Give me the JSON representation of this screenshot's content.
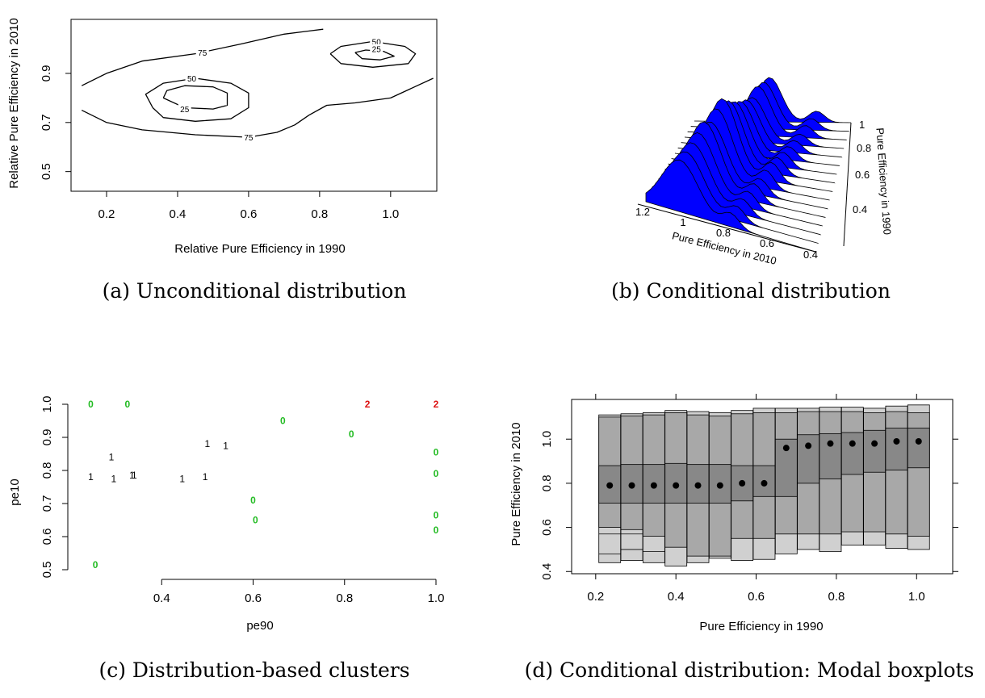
{
  "captions": {
    "a": "(a) Unconditional distribution",
    "b": "(b) Conditional distribution",
    "c": "(c) Distribution-based clusters",
    "d": "(d) Conditional distribution: Modal boxplots"
  },
  "chart_data": [
    {
      "id": "a",
      "type": "contour",
      "xlabel": "Relative Pure Efficiency in 1990",
      "ylabel": "Relative Pure Efficiency in 2010",
      "xticks": [
        0.2,
        0.4,
        0.6,
        0.8,
        1.0
      ],
      "xtick_labels": [
        "0.2",
        "0.4",
        "0.6",
        "0.8",
        "1.0"
      ],
      "yticks": [
        0.5,
        0.7,
        0.9
      ],
      "ytick_labels": [
        "0.5",
        "0.7",
        "0.9"
      ],
      "xlim": [
        0.1,
        1.13
      ],
      "ylim": [
        0.42,
        1.12
      ],
      "contour_levels": [
        {
          "label": "75",
          "lines": [
            [
              [
                0.13,
                0.85
              ],
              [
                0.2,
                0.9
              ],
              [
                0.3,
                0.95
              ],
              [
                0.45,
                0.98
              ],
              [
                0.58,
                1.02
              ],
              [
                0.7,
                1.06
              ],
              [
                0.81,
                1.08
              ]
            ],
            [
              [
                0.13,
                0.75
              ],
              [
                0.2,
                0.7
              ],
              [
                0.3,
                0.67
              ],
              [
                0.45,
                0.65
              ],
              [
                0.6,
                0.64
              ],
              [
                0.68,
                0.66
              ],
              [
                0.73,
                0.69
              ],
              [
                0.77,
                0.73
              ],
              [
                0.82,
                0.77
              ],
              [
                0.9,
                0.78
              ],
              [
                1.0,
                0.8
              ],
              [
                1.12,
                0.88
              ]
            ]
          ]
        },
        {
          "label": "50",
          "lines": [
            [
              [
                0.33,
                0.76
              ],
              [
                0.36,
                0.72
              ],
              [
                0.45,
                0.705
              ],
              [
                0.55,
                0.715
              ],
              [
                0.6,
                0.76
              ],
              [
                0.6,
                0.82
              ],
              [
                0.55,
                0.86
              ],
              [
                0.45,
                0.88
              ],
              [
                0.36,
                0.86
              ],
              [
                0.31,
                0.815
              ],
              [
                0.33,
                0.76
              ]
            ],
            [
              [
                0.83,
                0.98
              ],
              [
                0.86,
                0.94
              ],
              [
                0.95,
                0.925
              ],
              [
                1.05,
                0.94
              ],
              [
                1.07,
                0.98
              ],
              [
                1.04,
                1.01
              ],
              [
                0.95,
                1.03
              ],
              [
                0.86,
                1.01
              ],
              [
                0.83,
                0.98
              ]
            ]
          ]
        },
        {
          "label": "25",
          "lines": [
            [
              [
                0.36,
                0.8
              ],
              [
                0.42,
                0.76
              ],
              [
                0.5,
                0.755
              ],
              [
                0.54,
                0.77
              ],
              [
                0.54,
                0.82
              ],
              [
                0.5,
                0.845
              ],
              [
                0.42,
                0.85
              ],
              [
                0.37,
                0.83
              ],
              [
                0.36,
                0.8
              ]
            ],
            [
              [
                0.9,
                0.985
              ],
              [
                0.92,
                0.96
              ],
              [
                0.97,
                0.955
              ],
              [
                1.01,
                0.97
              ],
              [
                0.98,
                0.99
              ],
              [
                0.93,
                0.995
              ],
              [
                0.9,
                0.985
              ]
            ]
          ]
        }
      ],
      "contour_label_points": [
        {
          "label": "75",
          "x": 0.47,
          "y": 0.985
        },
        {
          "label": "50",
          "x": 0.44,
          "y": 0.88
        },
        {
          "label": "25",
          "x": 0.42,
          "y": 0.755
        },
        {
          "label": "75",
          "x": 0.6,
          "y": 0.64
        },
        {
          "label": "50",
          "x": 0.96,
          "y": 1.03
        },
        {
          "label": "25",
          "x": 0.96,
          "y": 1.0
        }
      ]
    },
    {
      "id": "b",
      "type": "area",
      "style": "3d-perspective-density-ridges",
      "fill_color": "#0000ff",
      "xlabel": "Pure Efficiency in 2010",
      "ylabel": "Pure Efficiency in 1990",
      "xtick_labels": [
        "1.2",
        "1",
        "0.8",
        "0.6",
        "0.4"
      ],
      "ytick_labels": [
        "1",
        "0.8",
        "0.6",
        "0.4"
      ],
      "peak_note": "density peaks near 2010 efficiency 1.0 for high 1990 efficiency and near 0.8 for low 1990 efficiency"
    },
    {
      "id": "c",
      "type": "scatter",
      "xlabel": "pe90",
      "ylabel": "pe10",
      "xticks": [
        0.4,
        0.6,
        0.8,
        1.0
      ],
      "xtick_labels": [
        "0.4",
        "0.6",
        "0.8",
        "1.0"
      ],
      "yticks": [
        0.5,
        0.6,
        0.7,
        0.8,
        0.9,
        1.0
      ],
      "ytick_labels": [
        "0.5",
        "0.6",
        "0.7",
        "0.8",
        "0.9",
        "1.0"
      ],
      "xlim": [
        0.23,
        1.0
      ],
      "ylim": [
        0.5,
        1.0
      ],
      "cluster_colors": {
        "0": "#22bb22",
        "1": "#000000",
        "2": "#dd1111"
      },
      "points": [
        {
          "x": 0.245,
          "y": 1.0,
          "label": "0"
        },
        {
          "x": 0.325,
          "y": 1.0,
          "label": "0"
        },
        {
          "x": 0.665,
          "y": 0.95,
          "label": "0"
        },
        {
          "x": 0.815,
          "y": 0.91,
          "label": "0"
        },
        {
          "x": 1.0,
          "y": 0.855,
          "label": "0"
        },
        {
          "x": 1.0,
          "y": 0.79,
          "label": "0"
        },
        {
          "x": 0.6,
          "y": 0.71,
          "label": "0"
        },
        {
          "x": 1.0,
          "y": 0.665,
          "label": "0"
        },
        {
          "x": 0.605,
          "y": 0.65,
          "label": "0"
        },
        {
          "x": 1.0,
          "y": 0.62,
          "label": "0"
        },
        {
          "x": 0.255,
          "y": 0.515,
          "label": "0"
        },
        {
          "x": 0.245,
          "y": 0.78,
          "label": "1"
        },
        {
          "x": 0.29,
          "y": 0.84,
          "label": "1"
        },
        {
          "x": 0.295,
          "y": 0.775,
          "label": "1"
        },
        {
          "x": 0.335,
          "y": 0.785,
          "label": "1"
        },
        {
          "x": 0.34,
          "y": 0.785,
          "label": "1"
        },
        {
          "x": 0.445,
          "y": 0.775,
          "label": "1"
        },
        {
          "x": 0.495,
          "y": 0.78,
          "label": "1"
        },
        {
          "x": 0.5,
          "y": 0.88,
          "label": "1"
        },
        {
          "x": 0.54,
          "y": 0.875,
          "label": "1"
        },
        {
          "x": 0.85,
          "y": 1.0,
          "label": "2"
        },
        {
          "x": 1.0,
          "y": 1.0,
          "label": "2"
        }
      ]
    },
    {
      "id": "d",
      "type": "bar",
      "style": "modal-boxplots",
      "xlabel": "Pure Efficiency in 1990",
      "ylabel": "Pure Efficiency in 2010",
      "xticks": [
        0.2,
        0.4,
        0.6,
        0.8,
        1.0
      ],
      "xtick_labels": [
        "0.2",
        "0.4",
        "0.6",
        "0.8",
        "1.0"
      ],
      "yticks": [
        0.4,
        0.6,
        0.8,
        1.0
      ],
      "ytick_labels": [
        "0.4",
        "0.6",
        "0.8",
        "1.0"
      ],
      "xlim": [
        0.14,
        1.09
      ],
      "ylim": [
        0.39,
        1.18
      ],
      "colors": {
        "outer": "#d0d0d0",
        "middle": "#a8a8a8",
        "inner": "#888888",
        "mode": "#000000"
      },
      "boxes": [
        {
          "x": 0.235,
          "outer": [
            0.44,
            1.11
          ],
          "middle": [
            0.6,
            1.1
          ],
          "inner": [
            0.71,
            0.88
          ],
          "mode": 0.79,
          "extra": [
            0.57,
            0.48
          ]
        },
        {
          "x": 0.29,
          "outer": [
            0.45,
            1.115
          ],
          "middle": [
            0.59,
            1.105
          ],
          "inner": [
            0.71,
            0.885
          ],
          "mode": 0.79,
          "extra": [
            0.57,
            0.5
          ]
        },
        {
          "x": 0.345,
          "outer": [
            0.44,
            1.12
          ],
          "middle": [
            0.56,
            1.11
          ],
          "inner": [
            0.71,
            0.885
          ],
          "mode": 0.79,
          "extra": [
            0.49
          ]
        },
        {
          "x": 0.4,
          "outer": [
            0.425,
            1.13
          ],
          "middle": [
            0.51,
            1.12
          ],
          "inner": [
            0.71,
            0.89
          ],
          "mode": 0.79,
          "extra": []
        },
        {
          "x": 0.455,
          "outer": [
            0.44,
            1.125
          ],
          "middle": [
            0.47,
            1.11
          ],
          "inner": [
            0.71,
            0.885
          ],
          "mode": 0.79,
          "extra": []
        },
        {
          "x": 0.51,
          "outer": [
            0.46,
            1.12
          ],
          "middle": [
            0.47,
            1.105
          ],
          "inner": [
            0.71,
            0.885
          ],
          "mode": 0.79,
          "extra": []
        },
        {
          "x": 0.565,
          "outer": [
            0.45,
            1.13
          ],
          "middle": [
            0.55,
            1.115
          ],
          "inner": [
            0.72,
            0.88
          ],
          "mode": 0.8,
          "extra": []
        },
        {
          "x": 0.62,
          "outer": [
            0.455,
            1.14
          ],
          "middle": [
            0.55,
            1.12
          ],
          "inner": [
            0.74,
            0.88
          ],
          "mode": 0.8,
          "extra": []
        },
        {
          "x": 0.675,
          "outer": [
            0.48,
            1.14
          ],
          "middle": [
            0.57,
            1.12
          ],
          "inner": [
            0.74,
            1.0
          ],
          "mode": 0.96,
          "extra": []
        },
        {
          "x": 0.73,
          "outer": [
            0.5,
            1.14
          ],
          "middle": [
            0.57,
            1.125
          ],
          "inner": [
            0.8,
            1.02
          ],
          "mode": 0.97,
          "extra": []
        },
        {
          "x": 0.785,
          "outer": [
            0.49,
            1.145
          ],
          "middle": [
            0.57,
            1.125
          ],
          "inner": [
            0.82,
            1.025
          ],
          "mode": 0.98,
          "extra": []
        },
        {
          "x": 0.84,
          "outer": [
            0.52,
            1.145
          ],
          "middle": [
            0.58,
            1.125
          ],
          "inner": [
            0.84,
            1.03
          ],
          "mode": 0.98,
          "extra": []
        },
        {
          "x": 0.895,
          "outer": [
            0.52,
            1.14
          ],
          "middle": [
            0.58,
            1.12
          ],
          "inner": [
            0.85,
            1.04
          ],
          "mode": 0.98,
          "extra": []
        },
        {
          "x": 0.95,
          "outer": [
            0.505,
            1.15
          ],
          "middle": [
            0.57,
            1.125
          ],
          "inner": [
            0.86,
            1.05
          ],
          "mode": 0.99,
          "extra": []
        },
        {
          "x": 1.005,
          "outer": [
            0.5,
            1.155
          ],
          "middle": [
            0.56,
            1.12
          ],
          "inner": [
            0.87,
            1.05
          ],
          "mode": 0.99,
          "extra": []
        }
      ]
    }
  ]
}
